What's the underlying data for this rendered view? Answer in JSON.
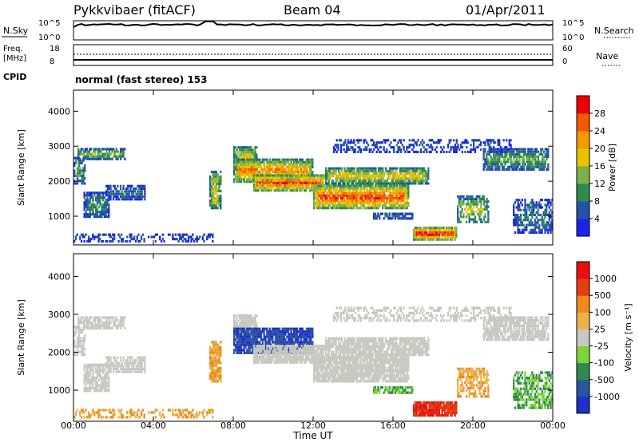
{
  "header": {
    "title": "Pykkvibaer (fitACF)",
    "beam": "Beam 04",
    "date": "01/Apr/2011"
  },
  "noise_panel": {
    "left_label": "N.Sky",
    "right_label": "N.Search",
    "left_ticks": [
      "10^5",
      "10^0"
    ],
    "right_ticks": [
      "10^5",
      "10^0"
    ]
  },
  "freq_panel": {
    "left_label_1": "Freq.",
    "left_label_2": "[MHz]",
    "right_label": "Nave",
    "left_ticks": [
      "18",
      "8"
    ],
    "right_ticks": [
      "60",
      "0"
    ]
  },
  "cpid": {
    "label": "CPID",
    "value": "normal (fast stereo) 153"
  },
  "colors": {
    "power_scale": [
      "#1c22e6",
      "#2253a8",
      "#2f8a4e",
      "#79b34a",
      "#e8c400",
      "#f39a00",
      "#f25a00",
      "#ec0000"
    ],
    "velocity_scale": [
      "#1f2fc8",
      "#2a56a0",
      "#2f8a4e",
      "#7ed33a",
      "#c8c8c0",
      "#e9b24a",
      "#ef8a1a",
      "#e53d14",
      "#e81010"
    ]
  },
  "chart_data": [
    {
      "type": "heatmap",
      "quantity": "power",
      "ylabel": "Slant Range [km]",
      "xlabel": "",
      "x": [
        "00:00",
        "04:00",
        "08:00",
        "12:00",
        "16:00",
        "20:00",
        "00:00"
      ],
      "ylim": [
        180,
        4600
      ],
      "yticks": [
        "1000",
        "2000",
        "3000",
        "4000"
      ],
      "colorbar_label": "Power [dB]",
      "colorbar_ticks": [
        "4",
        "8",
        "12",
        "16",
        "20",
        "24",
        "28"
      ],
      "colorbar_range": [
        0,
        32
      ]
    },
    {
      "type": "heatmap",
      "quantity": "velocity",
      "ylabel": "Slant Range [km]",
      "xlabel": "Time UT",
      "x": [
        "00:00",
        "04:00",
        "08:00",
        "12:00",
        "16:00",
        "20:00",
        "00:00"
      ],
      "ylim": [
        180,
        4600
      ],
      "yticks": [
        "1000",
        "2000",
        "3000",
        "4000"
      ],
      "colorbar_label": "Velocity [m s⁻¹]",
      "colorbar_ticks": [
        "1000",
        "500",
        "100",
        "25",
        "-25",
        "-100",
        "-500",
        "-1000"
      ]
    }
  ]
}
